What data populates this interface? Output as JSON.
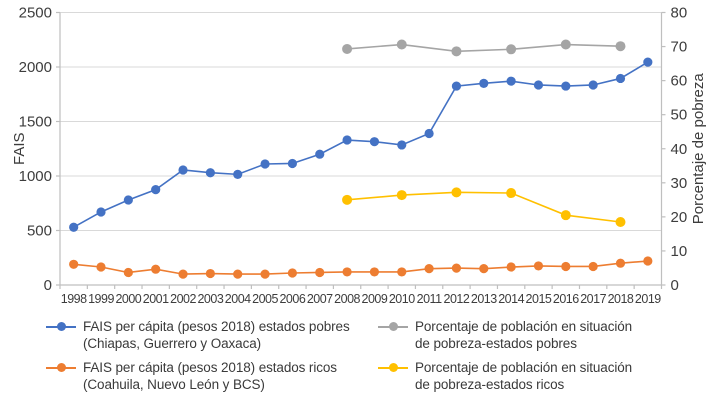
{
  "figure": {
    "left_axis_title": "FAIS",
    "right_axis_title": "Porcentaje de pobreza"
  },
  "chart_data": {
    "type": "line",
    "title": "",
    "xlabel": "",
    "grid": "horizontal",
    "legend_position": "bottom",
    "x_categories": [
      1998,
      1999,
      2000,
      2001,
      2002,
      2003,
      2004,
      2005,
      2006,
      2007,
      2008,
      2009,
      2010,
      2011,
      2012,
      2013,
      2014,
      2015,
      2016,
      2017,
      2018,
      2019
    ],
    "left_axis": {
      "label": "FAIS",
      "min": 0,
      "max": 2500,
      "tick_step": 500,
      "ticks": [
        0,
        500,
        1000,
        1500,
        2000,
        2500
      ]
    },
    "right_axis": {
      "label": "Porcentaje de pobreza",
      "min": 0,
      "max": 80,
      "tick_step": 10,
      "ticks": [
        0,
        10,
        20,
        30,
        40,
        50,
        60,
        70,
        80
      ]
    },
    "series": [
      {
        "id": "fais-pobres",
        "name": "FAIS per cápita (pesos 2018) estados pobres (Chiapas, Guerrero y Oaxaca)",
        "legend_line1": "FAIS per cápita (pesos 2018) estados pobres",
        "legend_line2": "(Chiapas, Guerrero y Oaxaca)",
        "color": "#4472C4",
        "axis": "left",
        "marker_radius": 4.6,
        "x": [
          1998,
          1999,
          2000,
          2001,
          2002,
          2003,
          2004,
          2005,
          2006,
          2007,
          2008,
          2009,
          2010,
          2011,
          2012,
          2013,
          2014,
          2015,
          2016,
          2017,
          2018,
          2019
        ],
        "values": [
          530,
          670,
          780,
          875,
          1055,
          1030,
          1015,
          1110,
          1115,
          1200,
          1330,
          1315,
          1285,
          1390,
          1825,
          1850,
          1870,
          1835,
          1825,
          1835,
          1895,
          2045
        ]
      },
      {
        "id": "fais-ricos",
        "name": "FAIS per cápita (pesos 2018) estados ricos (Coahuila, Nuevo León y BCS)",
        "legend_line1": "FAIS per cápita (pesos 2018) estados ricos",
        "legend_line2": "(Coahuila, Nuevo León y BCS)",
        "color": "#ED7D31",
        "axis": "left",
        "marker_radius": 4.6,
        "x": [
          1998,
          1999,
          2000,
          2001,
          2002,
          2003,
          2004,
          2005,
          2006,
          2007,
          2008,
          2009,
          2010,
          2011,
          2012,
          2013,
          2014,
          2015,
          2016,
          2017,
          2018,
          2019
        ],
        "values": [
          190,
          165,
          115,
          145,
          100,
          105,
          100,
          100,
          110,
          115,
          120,
          120,
          120,
          150,
          155,
          150,
          165,
          175,
          170,
          170,
          200,
          220
        ]
      },
      {
        "id": "pobreza-pobres",
        "name": "Porcentaje de población en situación de pobreza-estados pobres",
        "legend_line1": "Porcentaje de población en situación",
        "legend_line2": "de pobreza-estados pobres",
        "color": "#A5A5A5",
        "axis": "right",
        "marker_radius": 5,
        "x": [
          2008,
          2010,
          2012,
          2014,
          2016,
          2018
        ],
        "values": [
          69.3,
          70.6,
          68.6,
          69.2,
          70.6,
          70.1
        ]
      },
      {
        "id": "pobreza-ricos",
        "name": "Porcentaje de población en situación de pobreza-estados ricos",
        "legend_line1": "Porcentaje de población en situación",
        "legend_line2": "de pobreza-estados ricos",
        "color": "#FFC000",
        "axis": "right",
        "marker_radius": 5,
        "x": [
          2008,
          2010,
          2012,
          2014,
          2016,
          2018
        ],
        "values": [
          25.0,
          26.4,
          27.2,
          27.0,
          20.5,
          18.5
        ]
      }
    ],
    "style": {
      "grid_color": "#D9D9D9",
      "axis_color": "#BFBFBF",
      "tick_label_color": "#3d3d3d",
      "axis_title_color": "#3d3d3d"
    }
  }
}
